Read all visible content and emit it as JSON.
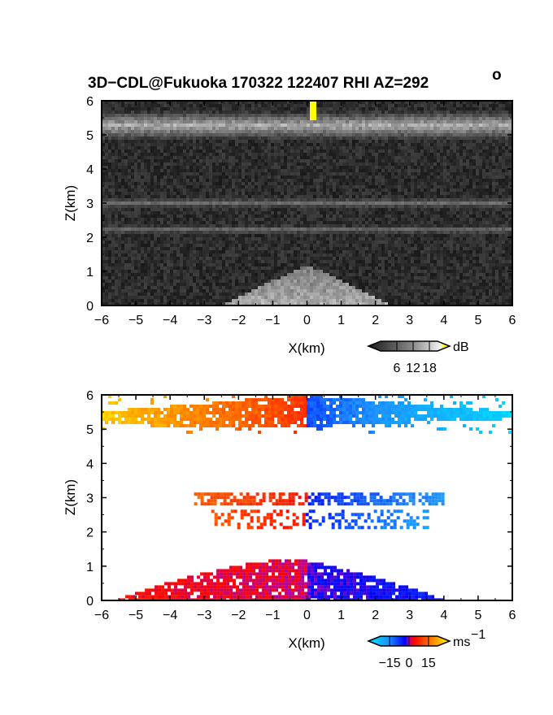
{
  "title": "3D−CDL@Fukuoka 170322 122407 RHI AZ=292",
  "title_degree": "o",
  "chart_data": [
    {
      "type": "heatmap",
      "name": "snr",
      "xlabel": "X(km)",
      "ylabel": "Z(km)",
      "xlim": [
        -6,
        6
      ],
      "ylim": [
        0,
        6
      ],
      "xticks": [
        "−6",
        "−5",
        "−4",
        "−3",
        "−2",
        "−1",
        "0",
        "1",
        "2",
        "3",
        "4",
        "5",
        "6"
      ],
      "yticks": [
        "0",
        "1",
        "2",
        "3",
        "4",
        "5",
        "6"
      ],
      "colorbar": {
        "unit": "dB",
        "ticks": [
          "6",
          "12",
          "18"
        ],
        "tick_values": [
          6,
          12,
          18
        ],
        "range": [
          0,
          21
        ]
      },
      "background_color": "#2b2b2b",
      "layers": [
        {
          "feature": "cloud layer",
          "x": [
            -6,
            6
          ],
          "z": [
            4.85,
            5.7
          ],
          "level": "bright"
        },
        {
          "feature": "aerosol layer",
          "x": [
            -6,
            6
          ],
          "z": [
            2.85,
            3.15
          ],
          "level": "faint"
        },
        {
          "feature": "aerosol layer",
          "x": [
            -6,
            6
          ],
          "z": [
            2.1,
            2.35
          ],
          "level": "faint"
        },
        {
          "feature": "boundary layer",
          "x": [
            -2.5,
            2.5
          ],
          "z": [
            0,
            1.2
          ],
          "level": "bright"
        },
        {
          "feature": "hotspot",
          "x": [
            0.05,
            0.25
          ],
          "z": [
            5.4,
            6.0
          ],
          "level": "max",
          "color": "#ffff00"
        }
      ]
    },
    {
      "type": "heatmap",
      "name": "doppler_velocity",
      "xlabel": "X(km)",
      "ylabel": "Z(km)",
      "xlim": [
        -6,
        6
      ],
      "ylim": [
        0,
        6
      ],
      "xticks": [
        "−6",
        "−5",
        "−4",
        "−3",
        "−2",
        "−1",
        "0",
        "1",
        "2",
        "3",
        "4",
        "5",
        "6"
      ],
      "yticks": [
        "0",
        "1",
        "2",
        "3",
        "4",
        "5",
        "6"
      ],
      "colorbar": {
        "unit": "ms",
        "unit_exp": "−1",
        "ticks": [
          "−15",
          "0",
          "15"
        ],
        "tick_values": [
          -15,
          0,
          15
        ],
        "range": [
          -22,
          22
        ]
      },
      "layers": [
        {
          "feature": "upper layer",
          "x": [
            -6,
            6
          ],
          "z": [
            4.95,
            6.0
          ],
          "velocity_at_xmin": 18,
          "velocity_at_xmax": -20,
          "sign_change_x": 0
        },
        {
          "feature": "middle layer",
          "x": [
            -3.3,
            4.0
          ],
          "z": [
            2.8,
            3.15
          ],
          "velocity_at_xmin": 10,
          "velocity_at_xmax": -12,
          "sign_change_x": 0
        },
        {
          "feature": "middle scatter",
          "x": [
            -2.8,
            3.5
          ],
          "z": [
            2.1,
            2.65
          ],
          "velocity_at_xmin": 9,
          "velocity_at_xmax": -12,
          "sign_change_x": 0
        },
        {
          "feature": "boundary layer",
          "x": [
            -5.5,
            4.0
          ],
          "z": [
            0,
            1.2
          ],
          "velocity_at_xmin": 3,
          "velocity_at_xmax": -4,
          "sign_change_x": 0
        }
      ]
    }
  ]
}
